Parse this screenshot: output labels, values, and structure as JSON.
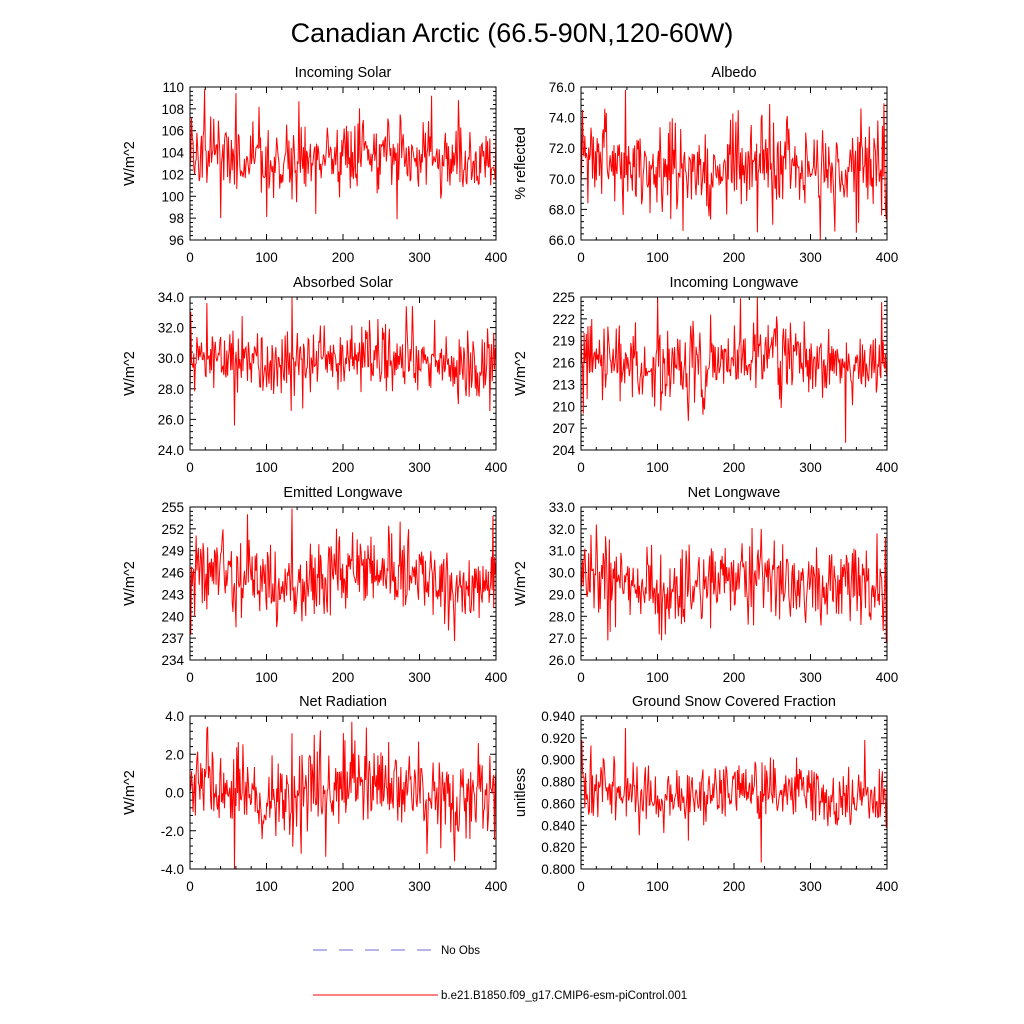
{
  "figure_title": "Canadian Arctic (66.5-90N,120-60W)",
  "legend": {
    "entries": [
      {
        "label": "No Obs",
        "style": "dashed",
        "color": "#6b6bd6"
      },
      {
        "label": "b.e21.B1850.f09_g17.CMIP6-esm-piControl.001",
        "style": "solid",
        "color": "#ff0000"
      }
    ]
  },
  "series_color": "#ff0000",
  "chart_data": [
    {
      "type": "line",
      "title": "Incoming Solar",
      "ylabel": "W/m^2",
      "xlabel": "",
      "xlim": [
        0,
        400
      ],
      "ylim": [
        96,
        110
      ],
      "yticks": [
        96,
        98,
        100,
        102,
        104,
        106,
        108,
        110
      ],
      "ytick_labels": [
        "96",
        "98",
        "100",
        "102",
        "104",
        "106",
        "108",
        "110"
      ],
      "xticks": [
        0,
        100,
        200,
        300,
        400
      ],
      "xtick_labels": [
        "0",
        "100",
        "200",
        "300",
        "400"
      ],
      "generator": {
        "n": 400,
        "mean": 103.7,
        "noise": 1.6,
        "amp": 0.6,
        "seed": 11,
        "peaks": [
          [
            2,
            107.2
          ],
          [
            19,
            109.8
          ],
          [
            40,
            98.0
          ],
          [
            100,
            98.1
          ],
          [
            142,
            108.7
          ],
          [
            315,
            109.2
          ],
          [
            270,
            97.9
          ],
          [
            350,
            108.8
          ]
        ]
      }
    },
    {
      "type": "line",
      "title": "Albedo",
      "ylabel": "% reflected",
      "xlabel": "",
      "xlim": [
        0,
        400
      ],
      "ylim": [
        66,
        76
      ],
      "yticks": [
        66,
        68,
        70,
        72,
        74,
        76
      ],
      "ytick_labels": [
        "66.0",
        "68.0",
        "70.0",
        "72.0",
        "74.0",
        "76.0"
      ],
      "xticks": [
        0,
        100,
        200,
        300,
        400
      ],
      "xtick_labels": [
        "0",
        "100",
        "200",
        "300",
        "400"
      ],
      "generator": {
        "n": 400,
        "mean": 70.9,
        "noise": 1.35,
        "amp": 0.5,
        "seed": 23,
        "peaks": [
          [
            2,
            74.5
          ],
          [
            58,
            75.8
          ],
          [
            133,
            66.6
          ],
          [
            230,
            66.5
          ],
          [
            250,
            67.0
          ],
          [
            365,
            74.6
          ],
          [
            75,
            72.5
          ]
        ]
      }
    },
    {
      "type": "line",
      "title": "Absorbed Solar",
      "ylabel": "W/m^2",
      "xlabel": "",
      "xlim": [
        0,
        400
      ],
      "ylim": [
        24,
        34
      ],
      "yticks": [
        24,
        26,
        28,
        30,
        32,
        34
      ],
      "ytick_labels": [
        "24.0",
        "26.0",
        "28.0",
        "30.0",
        "32.0",
        "34.0"
      ],
      "xticks": [
        0,
        100,
        200,
        300,
        400
      ],
      "xtick_labels": [
        "0",
        "100",
        "200",
        "300",
        "400"
      ],
      "generator": {
        "n": 400,
        "mean": 29.8,
        "noise": 1.15,
        "amp": 0.4,
        "seed": 37,
        "peaks": [
          [
            0,
            26.6
          ],
          [
            22,
            33.6
          ],
          [
            58,
            25.6
          ],
          [
            133,
            34.0
          ],
          [
            290,
            33.4
          ],
          [
            350,
            27.0
          ]
        ]
      }
    },
    {
      "type": "line",
      "title": "Incoming Longwave",
      "ylabel": "W/m^2",
      "xlabel": "",
      "xlim": [
        0,
        400
      ],
      "ylim": [
        204,
        225
      ],
      "yticks": [
        204,
        207,
        210,
        213,
        216,
        219,
        222,
        225
      ],
      "ytick_labels": [
        "204",
        "207",
        "210",
        "213",
        "216",
        "219",
        "222",
        "225"
      ],
      "xticks": [
        0,
        100,
        200,
        300,
        400
      ],
      "xtick_labels": [
        "0",
        "100",
        "200",
        "300",
        "400"
      ],
      "generator": {
        "n": 400,
        "mean": 216.2,
        "noise": 2.6,
        "amp": 0.9,
        "seed": 47,
        "peaks": [
          [
            3,
            209.0
          ],
          [
            100,
            224.8
          ],
          [
            230,
            225.0
          ],
          [
            345,
            205.0
          ],
          [
            392,
            224.3
          ],
          [
            140,
            208.0
          ]
        ]
      }
    },
    {
      "type": "line",
      "title": "Emitted Longwave",
      "ylabel": "W/m^2",
      "xlabel": "",
      "xlim": [
        0,
        400
      ],
      "ylim": [
        234,
        255
      ],
      "yticks": [
        234,
        237,
        240,
        243,
        246,
        249,
        252,
        255
      ],
      "ytick_labels": [
        "234",
        "237",
        "240",
        "243",
        "246",
        "249",
        "252",
        "255"
      ],
      "xticks": [
        0,
        100,
        200,
        300,
        400
      ],
      "xtick_labels": [
        "0",
        "100",
        "200",
        "300",
        "400"
      ],
      "generator": {
        "n": 400,
        "mean": 245.6,
        "noise": 2.6,
        "amp": 0.9,
        "seed": 59,
        "peaks": [
          [
            1,
            237.5
          ],
          [
            133,
            254.8
          ],
          [
            345,
            236.6
          ],
          [
            395,
            253.8
          ],
          [
            75,
            254.0
          ],
          [
            60,
            238.5
          ]
        ]
      }
    },
    {
      "type": "line",
      "title": "Net Longwave",
      "ylabel": "W/m^2",
      "xlabel": "",
      "xlim": [
        0,
        400
      ],
      "ylim": [
        26,
        33
      ],
      "yticks": [
        26,
        27,
        28,
        29,
        30,
        31,
        32,
        33
      ],
      "ytick_labels": [
        "26.0",
        "27.0",
        "28.0",
        "29.0",
        "30.0",
        "31.0",
        "32.0",
        "33.0"
      ],
      "xticks": [
        0,
        100,
        200,
        300,
        400
      ],
      "xtick_labels": [
        "0",
        "100",
        "200",
        "300",
        "400"
      ],
      "generator": {
        "n": 400,
        "mean": 29.6,
        "noise": 0.85,
        "amp": 0.3,
        "seed": 71,
        "peaks": [
          [
            20,
            32.2
          ],
          [
            35,
            26.9
          ],
          [
            105,
            26.9
          ],
          [
            235,
            32.0
          ],
          [
            397,
            31.6
          ],
          [
            398,
            26.8
          ]
        ]
      }
    },
    {
      "type": "line",
      "title": "Net Radiation",
      "ylabel": "W/m^2",
      "xlabel": "",
      "xlim": [
        0,
        400
      ],
      "ylim": [
        -4,
        4
      ],
      "yticks": [
        -4,
        -2,
        0,
        2,
        4
      ],
      "ytick_labels": [
        "-4.0",
        "-2.0",
        "0.0",
        "2.0",
        "4.0"
      ],
      "xticks": [
        0,
        100,
        200,
        300,
        400
      ],
      "xtick_labels": [
        "0",
        "100",
        "200",
        "300",
        "400"
      ],
      "generator": {
        "n": 400,
        "mean": 0.1,
        "noise": 1.05,
        "amp": 0.35,
        "seed": 83,
        "peaks": [
          [
            22,
            3.3
          ],
          [
            58,
            -4.0
          ],
          [
            133,
            3.1
          ],
          [
            145,
            -3.2
          ],
          [
            230,
            3.4
          ],
          [
            345,
            -3.6
          ]
        ]
      }
    },
    {
      "type": "line",
      "title": "Ground Snow Covered Fraction",
      "ylabel": "unitless",
      "xlabel": "",
      "xlim": [
        0,
        400
      ],
      "ylim": [
        0.8,
        0.94
      ],
      "yticks": [
        0.8,
        0.82,
        0.84,
        0.86,
        0.88,
        0.9,
        0.92,
        0.94
      ],
      "ytick_labels": [
        "0.800",
        "0.820",
        "0.840",
        "0.860",
        "0.880",
        "0.900",
        "0.920",
        "0.940"
      ],
      "xticks": [
        0,
        100,
        200,
        300,
        400
      ],
      "xtick_labels": [
        "0",
        "100",
        "200",
        "300",
        "400"
      ],
      "generator": {
        "n": 400,
        "mean": 0.868,
        "noise": 0.014,
        "amp": 0.006,
        "seed": 97,
        "peaks": [
          [
            1,
            0.918
          ],
          [
            58,
            0.929
          ],
          [
            235,
            0.806
          ],
          [
            370,
            0.918
          ],
          [
            398,
            0.838
          ],
          [
            140,
            0.826
          ]
        ]
      }
    }
  ]
}
